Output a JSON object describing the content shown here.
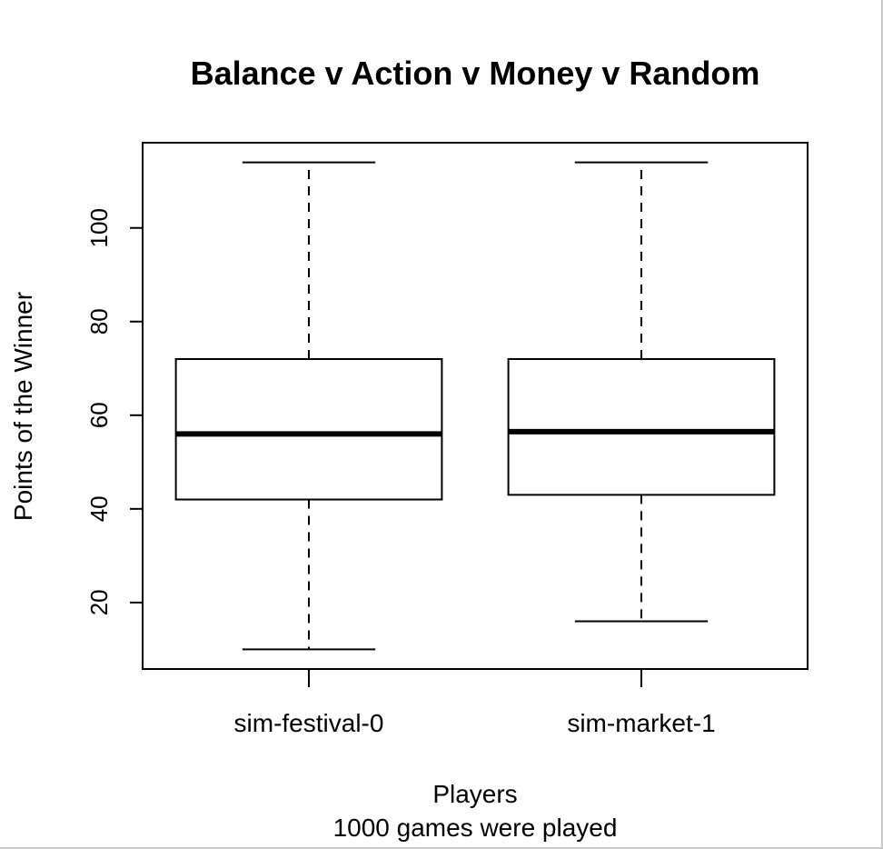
{
  "chart_data": {
    "type": "boxplot",
    "title": "Balance v Action v Money v Random",
    "xlabel": "Players",
    "subtitle": "1000 games were played",
    "ylabel": "Points of the Winner",
    "categories": [
      "sim-festival-0",
      "sim-market-1"
    ],
    "boxes": [
      {
        "label": "sim-festival-0",
        "whisker_low": 10,
        "q1": 42,
        "median": 56,
        "q3": 72,
        "whisker_high": 114
      },
      {
        "label": "sim-market-1",
        "whisker_low": 16,
        "q1": 43,
        "median": 56.5,
        "q3": 72,
        "whisker_high": 114
      }
    ],
    "yticks": [
      20,
      40,
      60,
      80,
      100
    ],
    "ylim": [
      5.8,
      118.2
    ],
    "grid": false,
    "legend": "none",
    "colors": {
      "box_fill": "#ffffff",
      "stroke": "#000000"
    }
  }
}
